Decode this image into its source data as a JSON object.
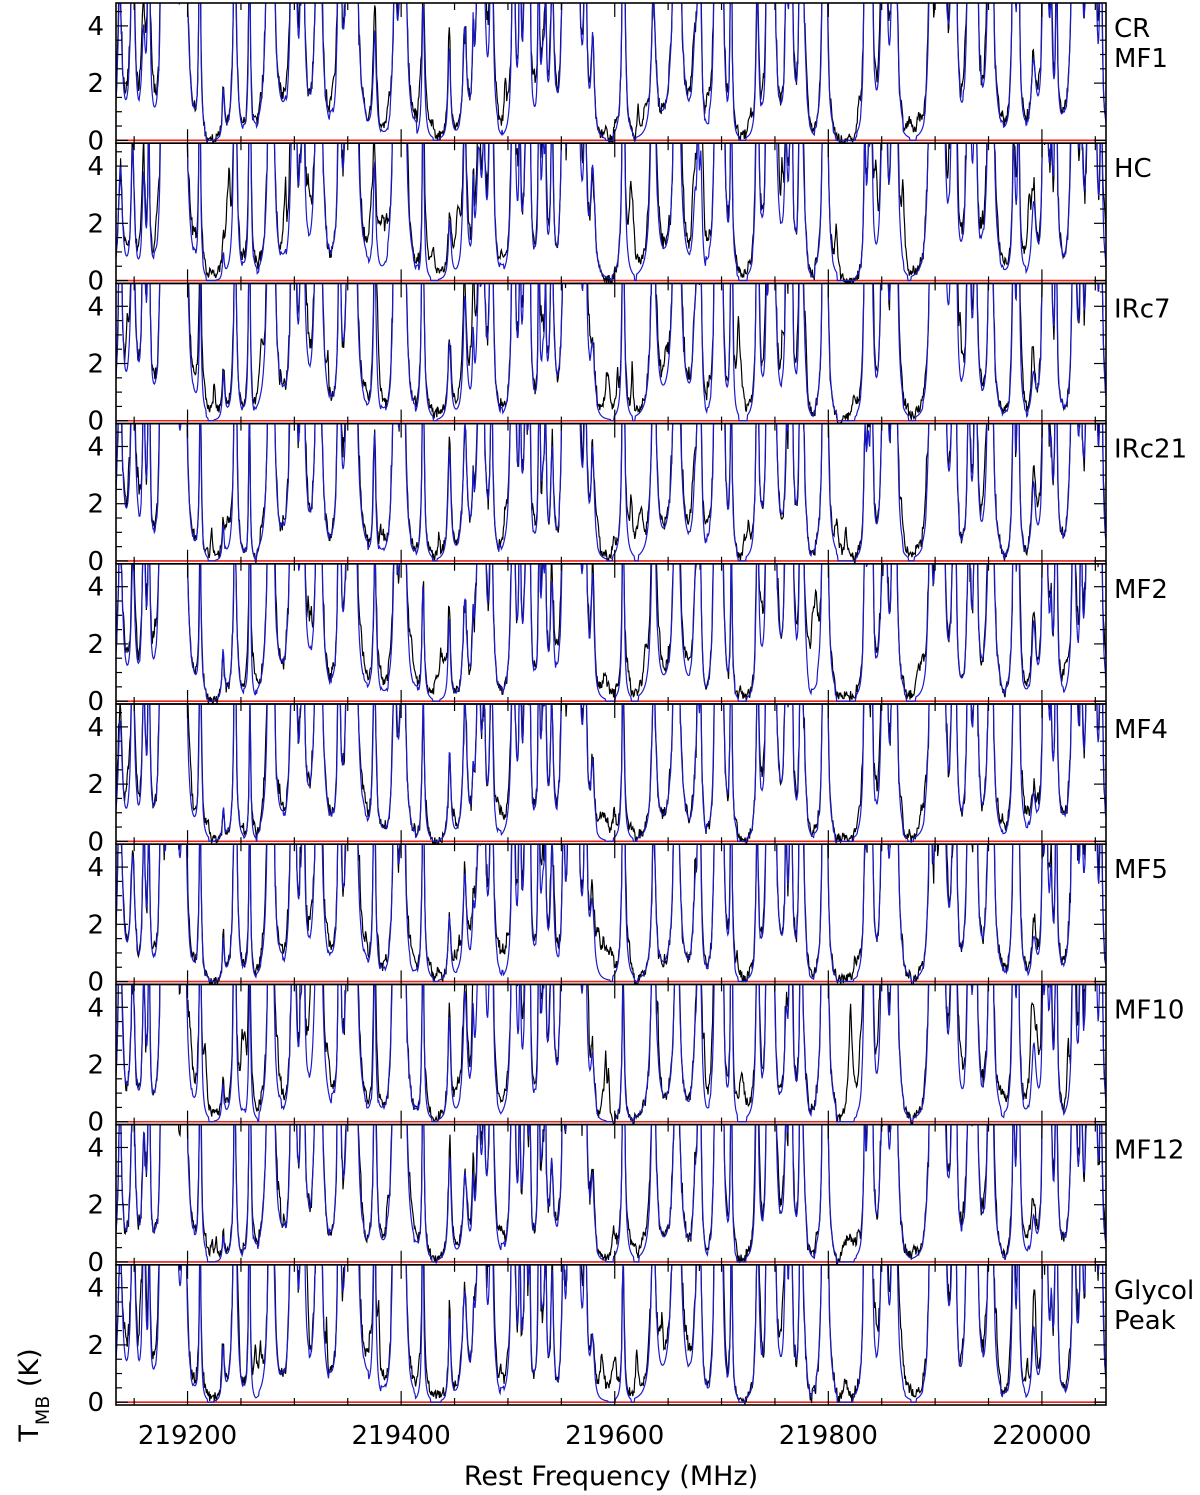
{
  "chart_data": {
    "type": "line",
    "xlabel": "Rest Frequency (MHz)",
    "ylabel": "T",
    "ylabel_subscript": "MB",
    "ylabel_unit": " (K)",
    "xlim": [
      219133,
      220060
    ],
    "ylim": [
      -0.1,
      4.8
    ],
    "x_ticks": [
      219200,
      219400,
      219600,
      219800,
      220000
    ],
    "x_tick_labels": [
      "219200",
      "219400",
      "219600",
      "219800",
      "220000"
    ],
    "y_ticks": [
      0,
      2,
      4
    ],
    "y_tick_labels": [
      "0",
      "2",
      "4"
    ],
    "colors": {
      "observed": "#000000",
      "model": "#1a1acc",
      "baseline": "#e8231a"
    },
    "series": [
      {
        "role": "observed",
        "color": "#000000"
      },
      {
        "role": "model",
        "color": "#1a1acc"
      },
      {
        "role": "baseline",
        "color": "#e8231a",
        "y": 0
      }
    ],
    "panels": [
      {
        "label_lines": [
          "CR",
          "MF1"
        ],
        "seed": 11,
        "dens": 1.05,
        "extra": 0.3,
        "obs_excess": 0.35
      },
      {
        "label_lines": [
          "HC"
        ],
        "seed": 23,
        "dens": 1.1,
        "extra": 0.8,
        "obs_excess": 0.55
      },
      {
        "label_lines": [
          "IRc7"
        ],
        "seed": 37,
        "dens": 1.1,
        "extra": 0.6,
        "obs_excess": 0.5
      },
      {
        "label_lines": [
          "IRc21"
        ],
        "seed": 41,
        "dens": 1.0,
        "extra": 0.3,
        "obs_excess": 0.3
      },
      {
        "label_lines": [
          "MF2"
        ],
        "seed": 53,
        "dens": 1.15,
        "extra": 0.4,
        "obs_excess": 0.4
      },
      {
        "label_lines": [
          "MF4"
        ],
        "seed": 67,
        "dens": 0.9,
        "extra": 0.2,
        "obs_excess": 0.25
      },
      {
        "label_lines": [
          "MF5"
        ],
        "seed": 79,
        "dens": 0.95,
        "extra": 0.2,
        "obs_excess": 0.3
      },
      {
        "label_lines": [
          "MF10"
        ],
        "seed": 83,
        "dens": 1.1,
        "extra": 0.8,
        "obs_excess": 0.6
      },
      {
        "label_lines": [
          "MF12"
        ],
        "seed": 97,
        "dens": 0.85,
        "extra": 0.15,
        "obs_excess": 0.2
      },
      {
        "label_lines": [
          "Glycol",
          "Peak"
        ],
        "seed": 101,
        "dens": 1.05,
        "extra": 0.5,
        "obs_excess": 0.5
      }
    ]
  }
}
